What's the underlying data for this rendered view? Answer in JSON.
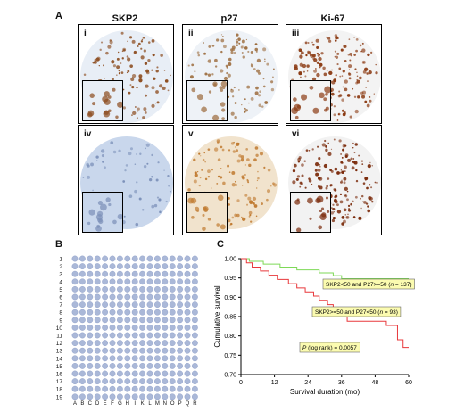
{
  "figure": {
    "panel_a": {
      "letter": "A",
      "column_headers": [
        "SKP2",
        "p27",
        "Ki-67"
      ],
      "tiles": [
        {
          "roman": "i",
          "stain": "brown-sparse",
          "bg": "#e8eef6",
          "dot": "#8b4a1c"
        },
        {
          "roman": "ii",
          "stain": "brown-light",
          "bg": "#eef2f7",
          "dot": "#9b6a3a"
        },
        {
          "roman": "iii",
          "stain": "brown-dense",
          "bg": "#f3f3f3",
          "dot": "#8b3a12"
        },
        {
          "roman": "iv",
          "stain": "blue",
          "bg": "#c9d7ec",
          "dot": "#7a8fb8"
        },
        {
          "roman": "v",
          "stain": "orange",
          "bg": "#f1e3cd",
          "dot": "#c07a30"
        },
        {
          "roman": "vi",
          "stain": "brown-cluster",
          "bg": "#f2f2f2",
          "dot": "#7a2a0a"
        }
      ]
    },
    "panel_b": {
      "letter": "B",
      "row_labels": [
        "1",
        "2",
        "3",
        "4",
        "5",
        "6",
        "7",
        "8",
        "9",
        "10",
        "11",
        "12",
        "13",
        "14",
        "15",
        "16",
        "17",
        "18",
        "19"
      ],
      "col_labels": [
        "A",
        "B",
        "C",
        "D",
        "E",
        "F",
        "G",
        "H",
        "I",
        "K",
        "L",
        "M",
        "N",
        "O",
        "P",
        "Q",
        "R"
      ],
      "core_color": "#aab8d8"
    },
    "panel_c": {
      "letter": "C"
    }
  },
  "chart_data": {
    "type": "line",
    "xlabel": "Survival duration (mo)",
    "ylabel": "Cumulative survival",
    "xlim": [
      0,
      60
    ],
    "ylim": [
      0.7,
      1.0
    ],
    "xticks": [
      0,
      12,
      24,
      36,
      48,
      60
    ],
    "yticks": [
      0.7,
      0.75,
      0.8,
      0.85,
      0.9,
      0.95,
      1.0
    ],
    "series": [
      {
        "name": "SKP2<50 and P27>=50 (n = 137)",
        "color": "#7ed957",
        "steps": [
          [
            0,
            1.0
          ],
          [
            3,
            0.993
          ],
          [
            8,
            0.986
          ],
          [
            14,
            0.978
          ],
          [
            20,
            0.971
          ],
          [
            28,
            0.963
          ],
          [
            33,
            0.956
          ],
          [
            36,
            0.948
          ],
          [
            60,
            0.948
          ]
        ]
      },
      {
        "name": "SKP2>=50 and P27<50 (n = 93)",
        "color": "#e8383b",
        "steps": [
          [
            0,
            1.0
          ],
          [
            2,
            0.989
          ],
          [
            4,
            0.978
          ],
          [
            7,
            0.968
          ],
          [
            10,
            0.957
          ],
          [
            13,
            0.946
          ],
          [
            17,
            0.935
          ],
          [
            20,
            0.924
          ],
          [
            23,
            0.914
          ],
          [
            26,
            0.903
          ],
          [
            28,
            0.892
          ],
          [
            31,
            0.881
          ],
          [
            33,
            0.87
          ],
          [
            34,
            0.859
          ],
          [
            36,
            0.849
          ],
          [
            38,
            0.838
          ],
          [
            52,
            0.827
          ],
          [
            56,
            0.79
          ],
          [
            58,
            0.77
          ],
          [
            60,
            0.77
          ]
        ]
      }
    ],
    "legend": [
      {
        "text": "SKP2<50 and P27>=50 (",
        "n": "n",
        "rest": " = 137)"
      },
      {
        "text": "SKP2>=50 and P27<50 (",
        "n": "n",
        "rest": " = 93)"
      }
    ],
    "annotation": {
      "p": "P",
      "rest": " (log rank) = 0.0057"
    }
  }
}
